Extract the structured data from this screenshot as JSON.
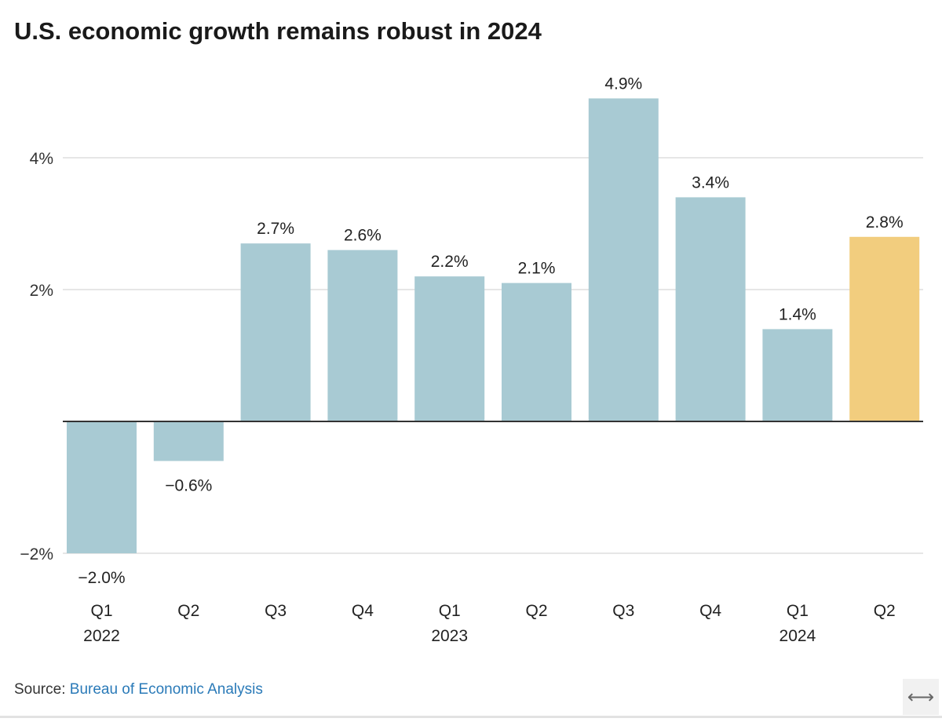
{
  "chart_data": {
    "type": "bar",
    "title": "U.S. economic growth remains robust in 2024",
    "categories": [
      "Q1 2022",
      "Q2 2022",
      "Q3 2022",
      "Q4 2022",
      "Q1 2023",
      "Q2 2023",
      "Q3 2023",
      "Q4 2023",
      "Q1 2024",
      "Q2 2024"
    ],
    "tick_labels": [
      {
        "quarter": "Q1",
        "year": "2022"
      },
      {
        "quarter": "Q2",
        "year": ""
      },
      {
        "quarter": "Q3",
        "year": ""
      },
      {
        "quarter": "Q4",
        "year": ""
      },
      {
        "quarter": "Q1",
        "year": "2023"
      },
      {
        "quarter": "Q2",
        "year": ""
      },
      {
        "quarter": "Q3",
        "year": ""
      },
      {
        "quarter": "Q4",
        "year": ""
      },
      {
        "quarter": "Q1",
        "year": "2024"
      },
      {
        "quarter": "Q2",
        "year": ""
      }
    ],
    "values": [
      -2.0,
      -0.6,
      2.7,
      2.6,
      2.2,
      2.1,
      4.9,
      3.4,
      1.4,
      2.8
    ],
    "data_labels": [
      "−2.0%",
      "−0.6%",
      "2.7%",
      "2.6%",
      "2.2%",
      "2.1%",
      "4.9%",
      "3.4%",
      "1.4%",
      "2.8%"
    ],
    "highlight_index": 9,
    "yticks": [
      -2,
      2,
      4
    ],
    "ytick_labels": [
      "−2%",
      "2%",
      "4%"
    ],
    "ylim": [
      -2.2,
      5.2
    ],
    "xlabel": "",
    "ylabel": "",
    "grid": true,
    "colors": {
      "bar": "#a8cad3",
      "highlight": "#f2cd7e",
      "grid": "#dddddd",
      "zero_line": "#333333"
    }
  },
  "source": {
    "label": "Source:",
    "link_text": "Bureau of Economic Analysis"
  },
  "expand_icon": "left-right-arrow-icon",
  "expand_glyph": "⟷"
}
